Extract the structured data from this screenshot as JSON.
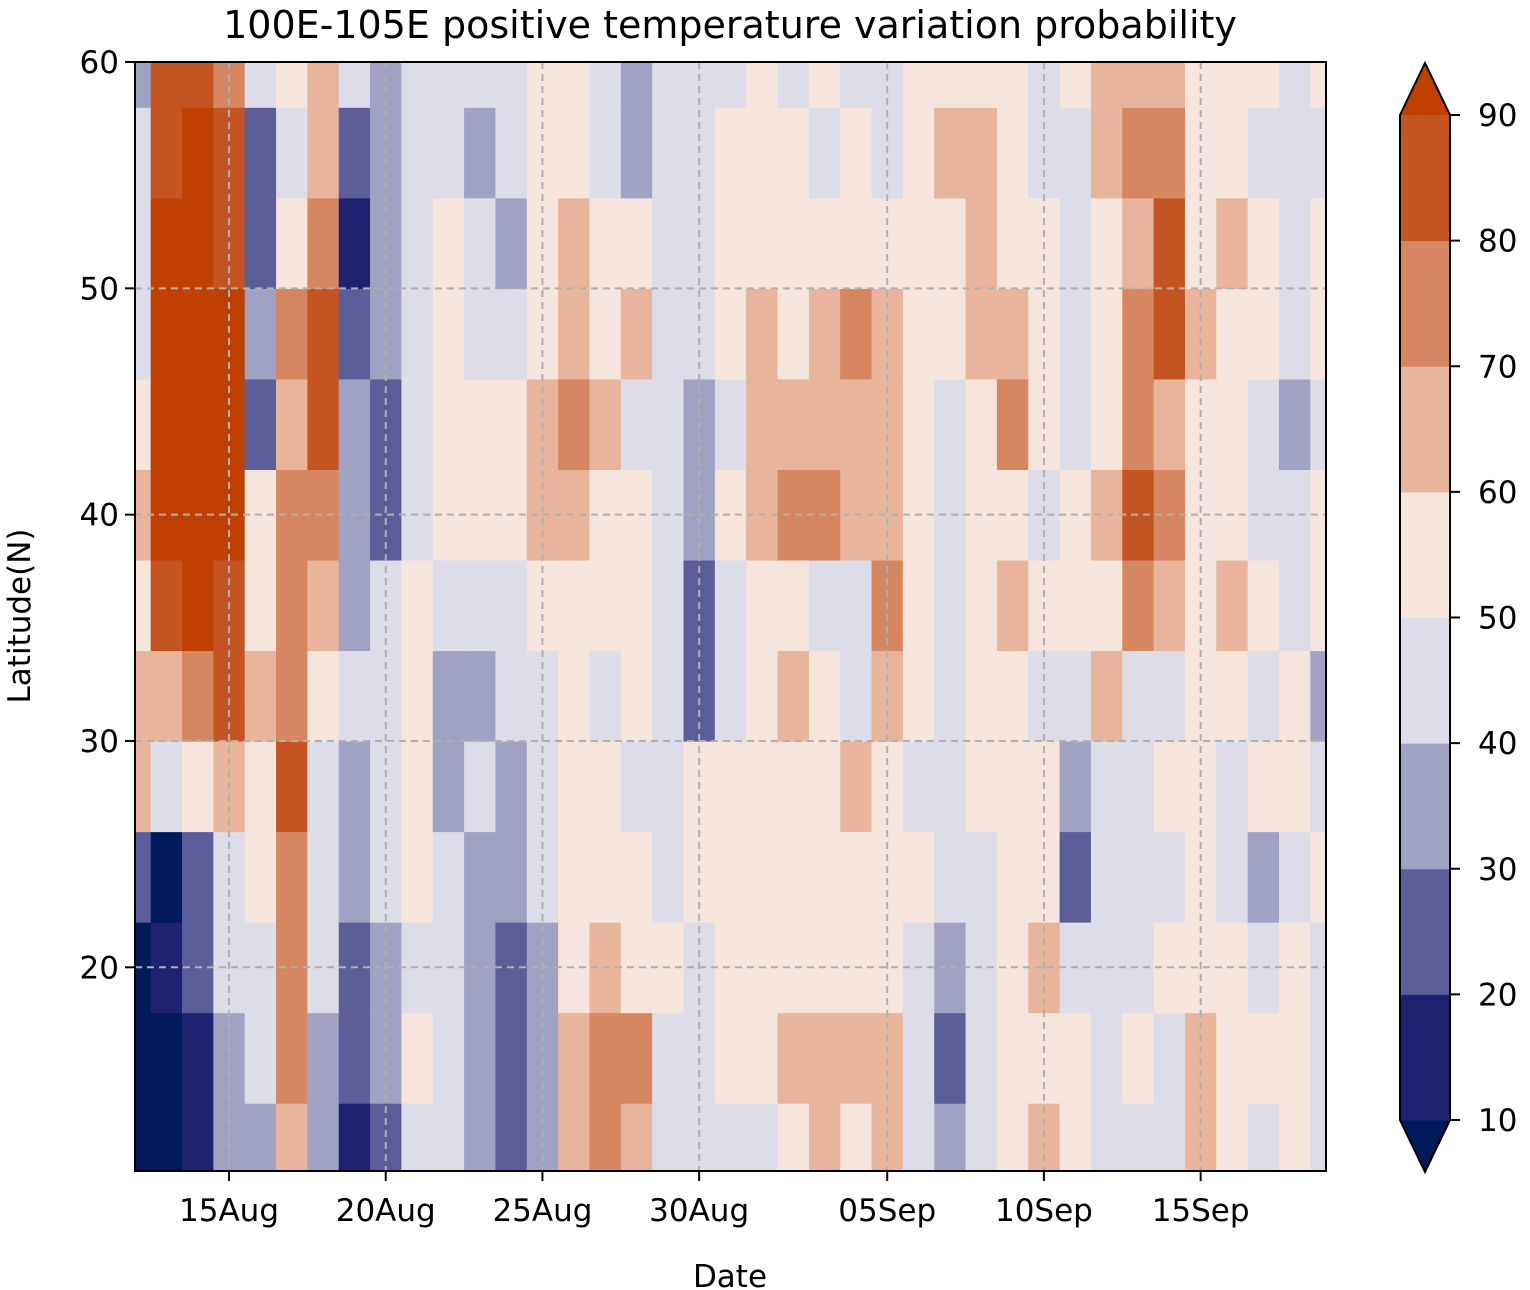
{
  "chart_data": {
    "type": "heatmap",
    "title": "100E-105E positive temperature variation probability",
    "xlabel": "Date",
    "ylabel": "Latitude(N)",
    "x_ticks": [
      "15Aug",
      "20Aug",
      "25Aug",
      "30Aug",
      "05Sep",
      "10Sep",
      "15Sep"
    ],
    "x_tick_dates": [
      "2000-08-15",
      "2000-08-20",
      "2000-08-25",
      "2000-08-30",
      "2000-09-05",
      "2000-09-10",
      "2000-09-15"
    ],
    "xlim": [
      "2000-08-12",
      "2000-09-19"
    ],
    "y_ticks": [
      20,
      30,
      40,
      50,
      60
    ],
    "ylim": [
      11,
      60
    ],
    "grid": true,
    "colorbar": {
      "levels": [
        10,
        20,
        30,
        40,
        50,
        60,
        70,
        80,
        90
      ],
      "tick_labels": [
        "10",
        "20",
        "30",
        "40",
        "50",
        "60",
        "70",
        "80",
        "90"
      ],
      "extend": "both",
      "colors": [
        "#001a5c",
        "#1f2270",
        "#5c5e9a",
        "#a0a2c4",
        "#dcdde8",
        "#f6e5dd",
        "#e8b49b",
        "#d68660",
        "#c45522",
        "#bf4000"
      ]
    },
    "latitudes": [
      12,
      16,
      20,
      24,
      28,
      32,
      36,
      40,
      44,
      48,
      52,
      56,
      60
    ],
    "dates": [
      "2000-08-12",
      "2000-08-13",
      "2000-08-14",
      "2000-08-15",
      "2000-08-16",
      "2000-08-17",
      "2000-08-18",
      "2000-08-19",
      "2000-08-20",
      "2000-08-21",
      "2000-08-22",
      "2000-08-23",
      "2000-08-24",
      "2000-08-25",
      "2000-08-26",
      "2000-08-27",
      "2000-08-28",
      "2000-08-29",
      "2000-08-30",
      "2000-08-31",
      "2000-09-01",
      "2000-09-02",
      "2000-09-03",
      "2000-09-04",
      "2000-09-05",
      "2000-09-06",
      "2000-09-07",
      "2000-09-08",
      "2000-09-09",
      "2000-09-10",
      "2000-09-11",
      "2000-09-12",
      "2000-09-13",
      "2000-09-14",
      "2000-09-15",
      "2000-09-16",
      "2000-09-17",
      "2000-09-18",
      "2000-09-19"
    ],
    "probability": [
      [
        8,
        5,
        15,
        30,
        35,
        62,
        35,
        15,
        25,
        45,
        40,
        30,
        22,
        30,
        65,
        72,
        62,
        45,
        40,
        45,
        48,
        55,
        60,
        58,
        62,
        45,
        30,
        40,
        50,
        60,
        55,
        48,
        45,
        45,
        62,
        55,
        45,
        50,
        45
      ],
      [
        5,
        8,
        15,
        35,
        42,
        72,
        38,
        20,
        30,
        50,
        40,
        30,
        20,
        30,
        62,
        78,
        70,
        48,
        45,
        50,
        52,
        60,
        62,
        65,
        60,
        42,
        25,
        45,
        52,
        58,
        52,
        45,
        50,
        48,
        60,
        58,
        50,
        50,
        45
      ],
      [
        8,
        10,
        20,
        42,
        48,
        72,
        45,
        28,
        38,
        48,
        45,
        35,
        28,
        38,
        58,
        62,
        55,
        50,
        48,
        50,
        55,
        58,
        52,
        55,
        55,
        45,
        35,
        45,
        55,
        62,
        48,
        45,
        42,
        50,
        55,
        50,
        45,
        52,
        48
      ],
      [
        20,
        8,
        25,
        45,
        52,
        78,
        48,
        35,
        45,
        50,
        42,
        35,
        35,
        45,
        52,
        55,
        50,
        45,
        50,
        55,
        52,
        55,
        58,
        52,
        58,
        50,
        40,
        48,
        52,
        55,
        25,
        45,
        48,
        45,
        52,
        45,
        35,
        45,
        50
      ],
      [
        62,
        45,
        55,
        65,
        58,
        80,
        48,
        38,
        45,
        52,
        35,
        40,
        38,
        45,
        55,
        52,
        48,
        45,
        50,
        55,
        50,
        52,
        58,
        68,
        55,
        45,
        42,
        50,
        55,
        50,
        38,
        40,
        45,
        50,
        52,
        45,
        50,
        50,
        42
      ],
      [
        68,
        65,
        75,
        82,
        65,
        78,
        52,
        42,
        45,
        50,
        38,
        32,
        42,
        48,
        52,
        48,
        52,
        45,
        25,
        45,
        55,
        60,
        50,
        45,
        68,
        55,
        45,
        50,
        55,
        48,
        45,
        62,
        42,
        40,
        50,
        52,
        45,
        50,
        35
      ],
      [
        55,
        82,
        90,
        88,
        50,
        75,
        68,
        38,
        45,
        50,
        48,
        45,
        45,
        52,
        58,
        55,
        50,
        45,
        25,
        45,
        55,
        58,
        48,
        45,
        75,
        50,
        40,
        55,
        62,
        55,
        50,
        55,
        75,
        62,
        55,
        62,
        52,
        45,
        50
      ],
      [
        60,
        90,
        92,
        90,
        50,
        70,
        70,
        32,
        28,
        48,
        50,
        52,
        50,
        62,
        65,
        58,
        52,
        45,
        32,
        50,
        62,
        72,
        75,
        62,
        60,
        50,
        45,
        55,
        55,
        45,
        55,
        60,
        88,
        70,
        55,
        50,
        45,
        40,
        50
      ],
      [
        55,
        92,
        95,
        90,
        25,
        68,
        82,
        35,
        25,
        45,
        55,
        52,
        50,
        62,
        72,
        60,
        45,
        42,
        30,
        48,
        60,
        65,
        62,
        65,
        60,
        50,
        45,
        55,
        70,
        55,
        48,
        55,
        75,
        68,
        55,
        50,
        48,
        30,
        45
      ],
      [
        45,
        95,
        95,
        92,
        35,
        72,
        80,
        22,
        30,
        48,
        55,
        48,
        40,
        55,
        65,
        52,
        60,
        45,
        40,
        50,
        62,
        55,
        60,
        72,
        62,
        50,
        55,
        65,
        62,
        50,
        45,
        55,
        72,
        80,
        62,
        50,
        50,
        45,
        50
      ],
      [
        40,
        92,
        95,
        85,
        28,
        52,
        72,
        15,
        30,
        45,
        50,
        45,
        38,
        55,
        60,
        58,
        55,
        40,
        45,
        55,
        50,
        55,
        52,
        55,
        55,
        50,
        52,
        62,
        55,
        50,
        45,
        55,
        65,
        80,
        55,
        60,
        55,
        48,
        50
      ],
      [
        42,
        88,
        92,
        82,
        25,
        48,
        62,
        22,
        32,
        45,
        45,
        38,
        42,
        50,
        52,
        45,
        30,
        40,
        45,
        50,
        52,
        55,
        48,
        50,
        45,
        52,
        60,
        62,
        55,
        45,
        45,
        65,
        78,
        70,
        50,
        52,
        48,
        48,
        45
      ],
      [
        38,
        82,
        88,
        78,
        42,
        55,
        62,
        48,
        35,
        45,
        45,
        42,
        40,
        58,
        55,
        42,
        38,
        40,
        45,
        48,
        52,
        40,
        50,
        48,
        45,
        50,
        55,
        52,
        50,
        40,
        50,
        60,
        65,
        60,
        55,
        58,
        50,
        45,
        50
      ]
    ]
  }
}
